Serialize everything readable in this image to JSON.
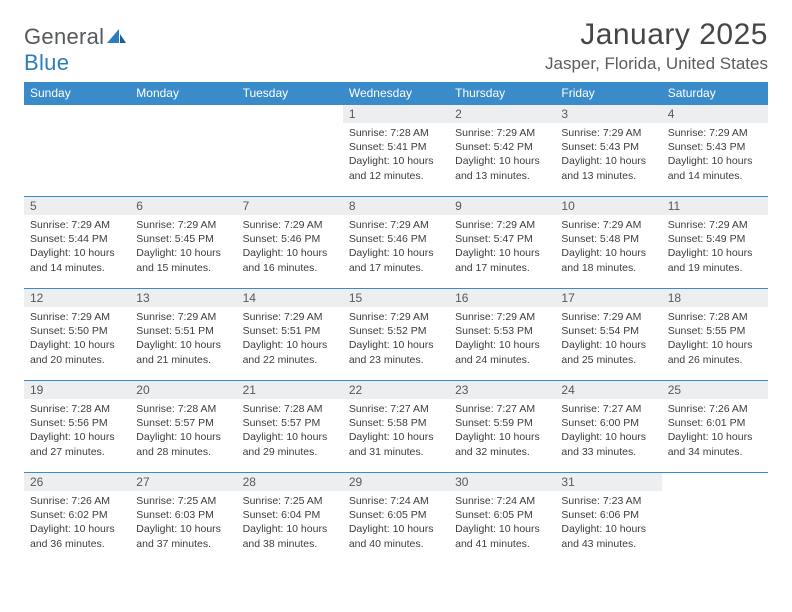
{
  "brand": {
    "name_a": "General",
    "name_b": "Blue"
  },
  "title": {
    "month": "January 2025",
    "location": "Jasper, Florida, United States"
  },
  "style": {
    "header_bg": "#3a8bc9",
    "header_text": "#ffffff",
    "daynum_bg": "#eceeef",
    "border_color": "#3a8bc9",
    "body_text": "#3c3d3f",
    "title_color": "#444648",
    "logo_gray": "#56595c",
    "logo_blue": "#2b7dbc",
    "page_bg": "#ffffff",
    "font_family": "Arial",
    "th_fontsize": 12,
    "daynum_fontsize": 12,
    "body_fontsize": 10.5,
    "title_fontsize": 30,
    "location_fontsize": 17
  },
  "weekdays": [
    "Sunday",
    "Monday",
    "Tuesday",
    "Wednesday",
    "Thursday",
    "Friday",
    "Saturday"
  ],
  "weeks": [
    [
      null,
      null,
      null,
      {
        "n": "1",
        "sunrise": "7:28 AM",
        "sunset": "5:41 PM",
        "dl_h": "10",
        "dl_m": "12"
      },
      {
        "n": "2",
        "sunrise": "7:29 AM",
        "sunset": "5:42 PM",
        "dl_h": "10",
        "dl_m": "13"
      },
      {
        "n": "3",
        "sunrise": "7:29 AM",
        "sunset": "5:43 PM",
        "dl_h": "10",
        "dl_m": "13"
      },
      {
        "n": "4",
        "sunrise": "7:29 AM",
        "sunset": "5:43 PM",
        "dl_h": "10",
        "dl_m": "14"
      }
    ],
    [
      {
        "n": "5",
        "sunrise": "7:29 AM",
        "sunset": "5:44 PM",
        "dl_h": "10",
        "dl_m": "14"
      },
      {
        "n": "6",
        "sunrise": "7:29 AM",
        "sunset": "5:45 PM",
        "dl_h": "10",
        "dl_m": "15"
      },
      {
        "n": "7",
        "sunrise": "7:29 AM",
        "sunset": "5:46 PM",
        "dl_h": "10",
        "dl_m": "16"
      },
      {
        "n": "8",
        "sunrise": "7:29 AM",
        "sunset": "5:46 PM",
        "dl_h": "10",
        "dl_m": "17"
      },
      {
        "n": "9",
        "sunrise": "7:29 AM",
        "sunset": "5:47 PM",
        "dl_h": "10",
        "dl_m": "17"
      },
      {
        "n": "10",
        "sunrise": "7:29 AM",
        "sunset": "5:48 PM",
        "dl_h": "10",
        "dl_m": "18"
      },
      {
        "n": "11",
        "sunrise": "7:29 AM",
        "sunset": "5:49 PM",
        "dl_h": "10",
        "dl_m": "19"
      }
    ],
    [
      {
        "n": "12",
        "sunrise": "7:29 AM",
        "sunset": "5:50 PM",
        "dl_h": "10",
        "dl_m": "20"
      },
      {
        "n": "13",
        "sunrise": "7:29 AM",
        "sunset": "5:51 PM",
        "dl_h": "10",
        "dl_m": "21"
      },
      {
        "n": "14",
        "sunrise": "7:29 AM",
        "sunset": "5:51 PM",
        "dl_h": "10",
        "dl_m": "22"
      },
      {
        "n": "15",
        "sunrise": "7:29 AM",
        "sunset": "5:52 PM",
        "dl_h": "10",
        "dl_m": "23"
      },
      {
        "n": "16",
        "sunrise": "7:29 AM",
        "sunset": "5:53 PM",
        "dl_h": "10",
        "dl_m": "24"
      },
      {
        "n": "17",
        "sunrise": "7:29 AM",
        "sunset": "5:54 PM",
        "dl_h": "10",
        "dl_m": "25"
      },
      {
        "n": "18",
        "sunrise": "7:28 AM",
        "sunset": "5:55 PM",
        "dl_h": "10",
        "dl_m": "26"
      }
    ],
    [
      {
        "n": "19",
        "sunrise": "7:28 AM",
        "sunset": "5:56 PM",
        "dl_h": "10",
        "dl_m": "27"
      },
      {
        "n": "20",
        "sunrise": "7:28 AM",
        "sunset": "5:57 PM",
        "dl_h": "10",
        "dl_m": "28"
      },
      {
        "n": "21",
        "sunrise": "7:28 AM",
        "sunset": "5:57 PM",
        "dl_h": "10",
        "dl_m": "29"
      },
      {
        "n": "22",
        "sunrise": "7:27 AM",
        "sunset": "5:58 PM",
        "dl_h": "10",
        "dl_m": "31"
      },
      {
        "n": "23",
        "sunrise": "7:27 AM",
        "sunset": "5:59 PM",
        "dl_h": "10",
        "dl_m": "32"
      },
      {
        "n": "24",
        "sunrise": "7:27 AM",
        "sunset": "6:00 PM",
        "dl_h": "10",
        "dl_m": "33"
      },
      {
        "n": "25",
        "sunrise": "7:26 AM",
        "sunset": "6:01 PM",
        "dl_h": "10",
        "dl_m": "34"
      }
    ],
    [
      {
        "n": "26",
        "sunrise": "7:26 AM",
        "sunset": "6:02 PM",
        "dl_h": "10",
        "dl_m": "36"
      },
      {
        "n": "27",
        "sunrise": "7:25 AM",
        "sunset": "6:03 PM",
        "dl_h": "10",
        "dl_m": "37"
      },
      {
        "n": "28",
        "sunrise": "7:25 AM",
        "sunset": "6:04 PM",
        "dl_h": "10",
        "dl_m": "38"
      },
      {
        "n": "29",
        "sunrise": "7:24 AM",
        "sunset": "6:05 PM",
        "dl_h": "10",
        "dl_m": "40"
      },
      {
        "n": "30",
        "sunrise": "7:24 AM",
        "sunset": "6:05 PM",
        "dl_h": "10",
        "dl_m": "41"
      },
      {
        "n": "31",
        "sunrise": "7:23 AM",
        "sunset": "6:06 PM",
        "dl_h": "10",
        "dl_m": "43"
      },
      null
    ]
  ],
  "labels": {
    "sunrise": "Sunrise:",
    "sunset": "Sunset:",
    "daylight_a": "Daylight:",
    "daylight_h": "hours",
    "daylight_and": "and",
    "daylight_m": "minutes."
  }
}
